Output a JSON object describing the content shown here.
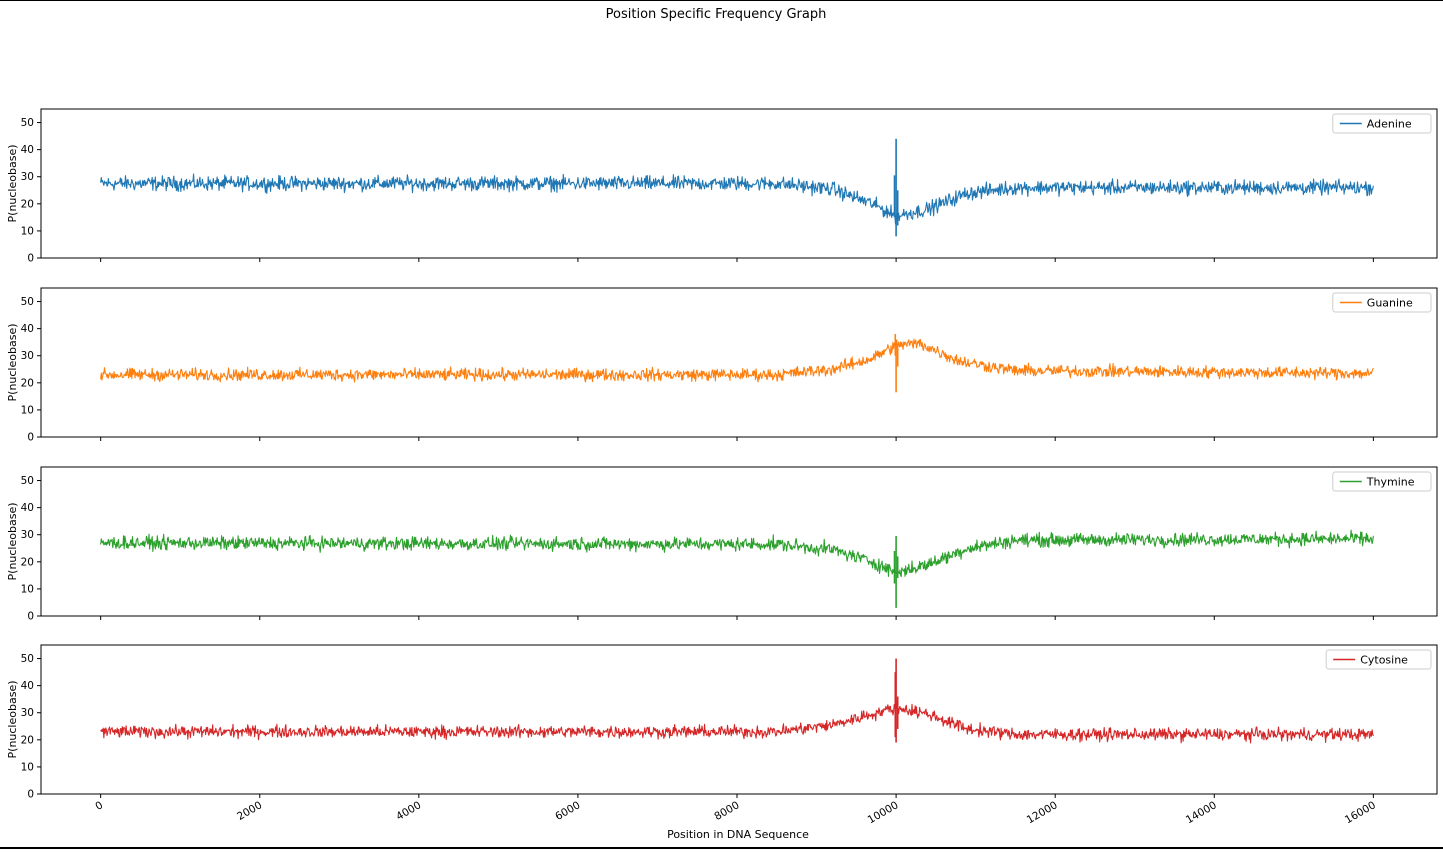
{
  "chart_data": {
    "type": "line",
    "title": "Position Specific Frequency Graph",
    "xlabel": "Position in DNA Sequence",
    "ylabel": "P(nucleobase)",
    "x_ticks": [
      0,
      2000,
      4000,
      6000,
      8000,
      10000,
      12000,
      14000,
      16000
    ],
    "y_ticks": [
      0,
      10,
      20,
      30,
      40,
      50
    ],
    "xlim": [
      -750,
      16800
    ],
    "ylim": [
      0,
      55
    ],
    "x_range": [
      0,
      16000
    ],
    "grid": false,
    "legend_placement": "upper right",
    "series": [
      {
        "name": "Adenine",
        "color": "#1f77b4",
        "noise": 1.3,
        "values": [
          [
            0,
            27.5
          ],
          [
            8500,
            27.5
          ],
          [
            9200,
            25.5
          ],
          [
            9700,
            20
          ],
          [
            10000,
            15.5
          ],
          [
            10400,
            18
          ],
          [
            10900,
            24
          ],
          [
            11500,
            26
          ],
          [
            16000,
            26
          ]
        ],
        "spikes": [
          [
            9980,
            15,
            30.5
          ],
          [
            10000,
            8,
            44
          ],
          [
            10020,
            12,
            25
          ]
        ]
      },
      {
        "name": "Guanine",
        "color": "#ff7f0e",
        "noise": 1.1,
        "values": [
          [
            0,
            23
          ],
          [
            8500,
            23
          ],
          [
            9200,
            25
          ],
          [
            9700,
            29
          ],
          [
            10000,
            34
          ],
          [
            10300,
            34.5
          ],
          [
            10800,
            28
          ],
          [
            11500,
            24.5
          ],
          [
            16000,
            23.5
          ]
        ],
        "spikes": [
          [
            9990,
            30,
            38
          ],
          [
            10000,
            16.5,
            36
          ],
          [
            10020,
            26,
            33
          ]
        ]
      },
      {
        "name": "Thymine",
        "color": "#2ca02c",
        "noise": 1.2,
        "values": [
          [
            0,
            27
          ],
          [
            8500,
            26.5
          ],
          [
            9200,
            24.5
          ],
          [
            9700,
            20
          ],
          [
            10000,
            16
          ],
          [
            10400,
            19
          ],
          [
            10900,
            25
          ],
          [
            11500,
            28
          ],
          [
            16000,
            28.5
          ]
        ],
        "spikes": [
          [
            9980,
            12,
            24
          ],
          [
            10000,
            3,
            29.5
          ],
          [
            10020,
            14,
            22
          ]
        ]
      },
      {
        "name": "Cytosine",
        "color": "#d62728",
        "noise": 1.1,
        "values": [
          [
            0,
            23
          ],
          [
            8500,
            23
          ],
          [
            9200,
            25.5
          ],
          [
            9700,
            29.5
          ],
          [
            10000,
            32
          ],
          [
            10400,
            29.5
          ],
          [
            10900,
            24
          ],
          [
            11500,
            22
          ],
          [
            16000,
            22
          ]
        ],
        "spikes": [
          [
            9990,
            21,
            45
          ],
          [
            10000,
            19,
            50
          ],
          [
            10020,
            24,
            36
          ]
        ]
      }
    ]
  }
}
